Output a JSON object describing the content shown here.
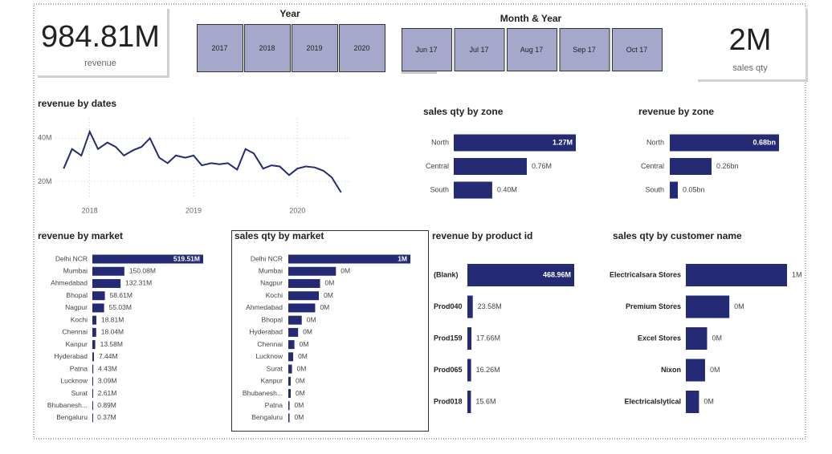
{
  "cards": [
    {
      "value": "984.81M",
      "label": "revenue"
    },
    {
      "value": "2M",
      "label": "sales qty"
    }
  ],
  "slicers": [
    {
      "title": "Year",
      "options": [
        "2017",
        "2018",
        "2019",
        "2020"
      ]
    },
    {
      "title": "Month & Year",
      "options": [
        "Jun 17",
        "Jul 17",
        "Aug 17",
        "Sep 17",
        "Oct 17"
      ]
    }
  ],
  "chart_data": [
    {
      "type": "line",
      "title": "revenue by dates",
      "color": "#252a74",
      "x": [
        2017.75,
        2017.83,
        2017.92,
        2018.0,
        2018.08,
        2018.17,
        2018.25,
        2018.33,
        2018.42,
        2018.5,
        2018.58,
        2018.67,
        2018.75,
        2018.83,
        2018.92,
        2019.0,
        2019.08,
        2019.17,
        2019.25,
        2019.33,
        2019.42,
        2019.5,
        2019.58,
        2019.67,
        2019.75,
        2019.83,
        2019.92,
        2020.0,
        2020.08,
        2020.17,
        2020.25,
        2020.33,
        2020.42
      ],
      "values": [
        26,
        35,
        32,
        43,
        35,
        38,
        36,
        32,
        34.5,
        36,
        40,
        31,
        28.5,
        32,
        31,
        32,
        27.5,
        28.5,
        28,
        28.5,
        25.5,
        35,
        33,
        26,
        27.5,
        27,
        23,
        26,
        27,
        26.5,
        25,
        22,
        15
      ],
      "xlim": [
        2017.5,
        2020.5
      ],
      "ylim": [
        12,
        49
      ],
      "xticks": [
        2018,
        2019,
        2020
      ],
      "yticks": [
        {
          "value": 20,
          "label": "20M"
        },
        {
          "value": 40,
          "label": "40M"
        }
      ],
      "grid": true
    },
    {
      "type": "hbar",
      "title": "sales qty by zone",
      "color": "#252a74",
      "categories": [
        "North",
        "Central",
        "South"
      ],
      "values": [
        1.27,
        0.76,
        0.4
      ],
      "value_labels": [
        "1.27M",
        "0.76M",
        "0.40M"
      ]
    },
    {
      "type": "hbar",
      "title": "revenue by zone",
      "color": "#252a74",
      "categories": [
        "North",
        "Central",
        "South"
      ],
      "values": [
        0.68,
        0.26,
        0.05
      ],
      "value_labels": [
        "0.68bn",
        "0.26bn",
        "0.05bn"
      ]
    },
    {
      "type": "hbar",
      "title": "revenue by market",
      "color": "#252a74",
      "categories": [
        "Delhi NCR",
        "Mumbai",
        "Ahmedabad",
        "Bhopal",
        "Nagpur",
        "Kochi",
        "Chennai",
        "Kanpur",
        "Hyderabad",
        "Patna",
        "Lucknow",
        "Surat",
        "Bhubanesh...",
        "Bengaluru"
      ],
      "values": [
        519.51,
        150.08,
        132.31,
        58.61,
        55.03,
        18.81,
        18.04,
        13.58,
        7.44,
        4.43,
        3.09,
        2.61,
        0.89,
        0.37
      ],
      "value_labels": [
        "519.51M",
        "150.08M",
        "132.31M",
        "58.61M",
        "55.03M",
        "18.81M",
        "18.04M",
        "13.58M",
        "7.44M",
        "4.43M",
        "3.09M",
        "2.61M",
        "0.89M",
        "0.37M"
      ]
    },
    {
      "type": "hbar",
      "title": "sales qty by market",
      "color": "#252a74",
      "categories": [
        "Delhi NCR",
        "Mumbai",
        "Nagpur",
        "Kochi",
        "Ahmedabad",
        "Bhopal",
        "Hyderabad",
        "Chennai",
        "Lucknow",
        "Surat",
        "Kanpur",
        "Bhubanesh...",
        "Patna",
        "Bengaluru"
      ],
      "values": [
        1,
        0.39,
        0.26,
        0.25,
        0.22,
        0.11,
        0.08,
        0.05,
        0.04,
        0.03,
        0.02,
        0.02,
        0.01,
        0.01
      ],
      "value_labels": [
        "1M",
        "0M",
        "0M",
        "0M",
        "0M",
        "0M",
        "0M",
        "0M",
        "0M",
        "0M",
        "0M",
        "0M",
        "0M",
        "0M"
      ]
    },
    {
      "type": "hbar",
      "title": "revenue by product id",
      "color": "#252a74",
      "categories": [
        "(Blank)",
        "Prod040",
        "Prod159",
        "Prod065",
        "Prod018"
      ],
      "values": [
        468.96,
        23.58,
        17.66,
        16.26,
        15.6
      ],
      "value_labels": [
        "468.96M",
        "23.58M",
        "17.66M",
        "16.26M",
        "15.6M"
      ]
    },
    {
      "type": "hbar",
      "title": "sales qty by customer name",
      "color": "#252a74",
      "categories": [
        "Electricalsara Stores",
        "Premium Stores",
        "Excel Stores",
        "Nixon",
        "Electricalslytical"
      ],
      "values": [
        1,
        0.43,
        0.21,
        0.19,
        0.13
      ],
      "value_labels": [
        "1M",
        "0M",
        "0M",
        "0M",
        "0M"
      ]
    }
  ]
}
